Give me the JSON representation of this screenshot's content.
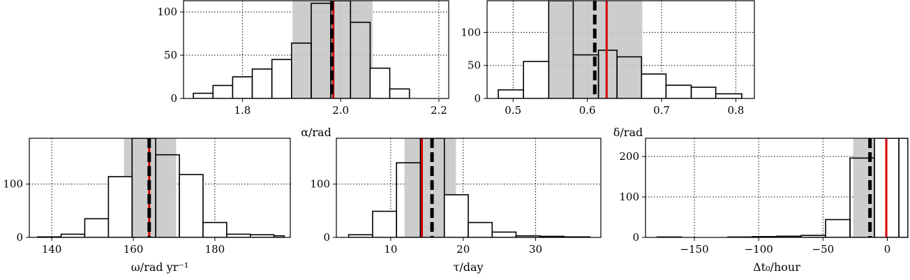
{
  "chart_data": [
    {
      "type": "bar",
      "xlabel": "α/rad",
      "xlim": [
        1.68,
        2.22
      ],
      "ylim": [
        0,
        113
      ],
      "xticks": [
        1.8,
        2.0,
        2.2
      ],
      "xtick_labels": [
        "1.8",
        "2.0",
        "2.2"
      ],
      "yticks": [
        0,
        50,
        100
      ],
      "ytick_labels": [
        "0",
        "50",
        "100"
      ],
      "grid": true,
      "bins": [
        {
          "x0": 1.7,
          "x1": 1.74,
          "value": 6
        },
        {
          "x0": 1.74,
          "x1": 1.78,
          "value": 15
        },
        {
          "x0": 1.78,
          "x1": 1.82,
          "value": 25
        },
        {
          "x0": 1.82,
          "x1": 1.86,
          "value": 34
        },
        {
          "x0": 1.86,
          "x1": 1.9,
          "value": 45
        },
        {
          "x0": 1.9,
          "x1": 1.94,
          "value": 64
        },
        {
          "x0": 1.94,
          "x1": 1.98,
          "value": 110
        },
        {
          "x0": 1.98,
          "x1": 2.02,
          "value": 113
        },
        {
          "x0": 2.02,
          "x1": 2.06,
          "value": 88
        },
        {
          "x0": 2.06,
          "x1": 2.1,
          "value": 35
        },
        {
          "x0": 2.1,
          "x1": 2.14,
          "value": 11
        }
      ],
      "shaded_band": [
        1.902,
        2.065
      ],
      "true_value": 1.985,
      "estimate": 1.982
    },
    {
      "type": "bar",
      "xlabel": "δ/rad",
      "xlim": [
        0.465,
        0.825
      ],
      "ylim": [
        0,
        148
      ],
      "xticks": [
        0.5,
        0.6,
        0.7,
        0.8
      ],
      "xtick_labels": [
        "0.5",
        "0.6",
        "0.7",
        "0.8"
      ],
      "yticks": [
        0,
        50,
        100
      ],
      "ytick_labels": [
        "0",
        "50",
        "100"
      ],
      "grid": true,
      "bins": [
        {
          "x0": 0.48,
          "x1": 0.514,
          "value": 13
        },
        {
          "x0": 0.514,
          "x1": 0.548,
          "value": 56
        },
        {
          "x0": 0.548,
          "x1": 0.581,
          "value": 148
        },
        {
          "x0": 0.581,
          "x1": 0.615,
          "value": 66
        },
        {
          "x0": 0.615,
          "x1": 0.64,
          "value": 73
        },
        {
          "x0": 0.64,
          "x1": 0.673,
          "value": 63
        },
        {
          "x0": 0.673,
          "x1": 0.706,
          "value": 37
        },
        {
          "x0": 0.706,
          "x1": 0.74,
          "value": 20
        },
        {
          "x0": 0.74,
          "x1": 0.773,
          "value": 17
        },
        {
          "x0": 0.773,
          "x1": 0.808,
          "value": 7
        }
      ],
      "shaded_band": [
        0.548,
        0.674
      ],
      "true_value": 0.626,
      "estimate": 0.61
    },
    {
      "type": "bar",
      "xlabel": "ω/rad yr⁻¹",
      "xlim": [
        134.5,
        198.5
      ],
      "ylim": [
        0,
        186
      ],
      "xticks": [
        140,
        160,
        180
      ],
      "xtick_labels": [
        "140",
        "160",
        "180"
      ],
      "yticks": [
        0,
        100
      ],
      "ytick_labels": [
        "0",
        "100"
      ],
      "grid": true,
      "bins": [
        {
          "x0": 136.5,
          "x1": 142.3,
          "value": 1
        },
        {
          "x0": 142.3,
          "x1": 148.1,
          "value": 6
        },
        {
          "x0": 148.1,
          "x1": 153.9,
          "value": 35
        },
        {
          "x0": 153.9,
          "x1": 159.7,
          "value": 114
        },
        {
          "x0": 159.7,
          "x1": 165.5,
          "value": 186
        },
        {
          "x0": 165.5,
          "x1": 171.3,
          "value": 155
        },
        {
          "x0": 171.3,
          "x1": 177.1,
          "value": 118
        },
        {
          "x0": 177.1,
          "x1": 182.9,
          "value": 28
        },
        {
          "x0": 182.9,
          "x1": 188.7,
          "value": 6
        },
        {
          "x0": 188.7,
          "x1": 194.5,
          "value": 5
        },
        {
          "x0": 194.5,
          "x1": 197.0,
          "value": 3
        }
      ],
      "shaded_band": [
        157.7,
        170.5
      ],
      "true_value": 163.9,
      "estimate": 163.9
    },
    {
      "type": "bar",
      "xlabel": "τ/day",
      "xlim": [
        2.5,
        39.0
      ],
      "ylim": [
        0,
        186
      ],
      "xticks": [
        10,
        20,
        30
      ],
      "xtick_labels": [
        "10",
        "20",
        "30"
      ],
      "yticks": [
        0,
        100
      ],
      "ytick_labels": [
        "0",
        "100"
      ],
      "grid": true,
      "bins": [
        {
          "x0": 4.2,
          "x1": 7.5,
          "value": 5
        },
        {
          "x0": 7.5,
          "x1": 10.8,
          "value": 49
        },
        {
          "x0": 10.8,
          "x1": 14.1,
          "value": 140
        },
        {
          "x0": 14.1,
          "x1": 17.4,
          "value": 186
        },
        {
          "x0": 17.4,
          "x1": 20.7,
          "value": 80
        },
        {
          "x0": 20.7,
          "x1": 24.0,
          "value": 28
        },
        {
          "x0": 24.0,
          "x1": 27.3,
          "value": 10
        },
        {
          "x0": 27.3,
          "x1": 30.6,
          "value": 3
        },
        {
          "x0": 30.6,
          "x1": 33.9,
          "value": 2
        },
        {
          "x0": 33.9,
          "x1": 37.5,
          "value": 1
        }
      ],
      "shaded_band": [
        11.9,
        19.0
      ],
      "true_value": 14.3,
      "estimate": 15.7
    },
    {
      "type": "bar",
      "xlabel": "Δt₀/hour",
      "xlim": [
        -188,
        16
      ],
      "ylim": [
        0,
        245
      ],
      "xticks": [
        -150,
        -100,
        -50,
        0
      ],
      "xtick_labels": [
        "−150",
        "−100",
        "−50",
        "0"
      ],
      "yticks": [
        0,
        100,
        200
      ],
      "ytick_labels": [
        "0",
        "100",
        "200"
      ],
      "grid": true,
      "bins": [
        {
          "x0": -179,
          "x1": -160,
          "value": 1
        },
        {
          "x0": -124,
          "x1": -105,
          "value": 1
        },
        {
          "x0": -105,
          "x1": -86,
          "value": 2
        },
        {
          "x0": -86,
          "x1": -67,
          "value": 3
        },
        {
          "x0": -67,
          "x1": -48,
          "value": 5
        },
        {
          "x0": -48,
          "x1": -29,
          "value": 44
        },
        {
          "x0": -29,
          "x1": -10,
          "value": 196
        },
        {
          "x0": -10,
          "x1": 9,
          "value": 245
        },
        {
          "x0": 9,
          "x1": 16,
          "value": 245
        }
      ],
      "shaded_band": [
        -26.5,
        -1.0
      ],
      "true_value": -0.8,
      "estimate": -13.5
    }
  ],
  "colors": {
    "band": "#c8c8c8",
    "true_line": "#d40000",
    "estimate_line": "#000000",
    "bar_fill": "#ffffff",
    "bar_edge": "#000000"
  }
}
